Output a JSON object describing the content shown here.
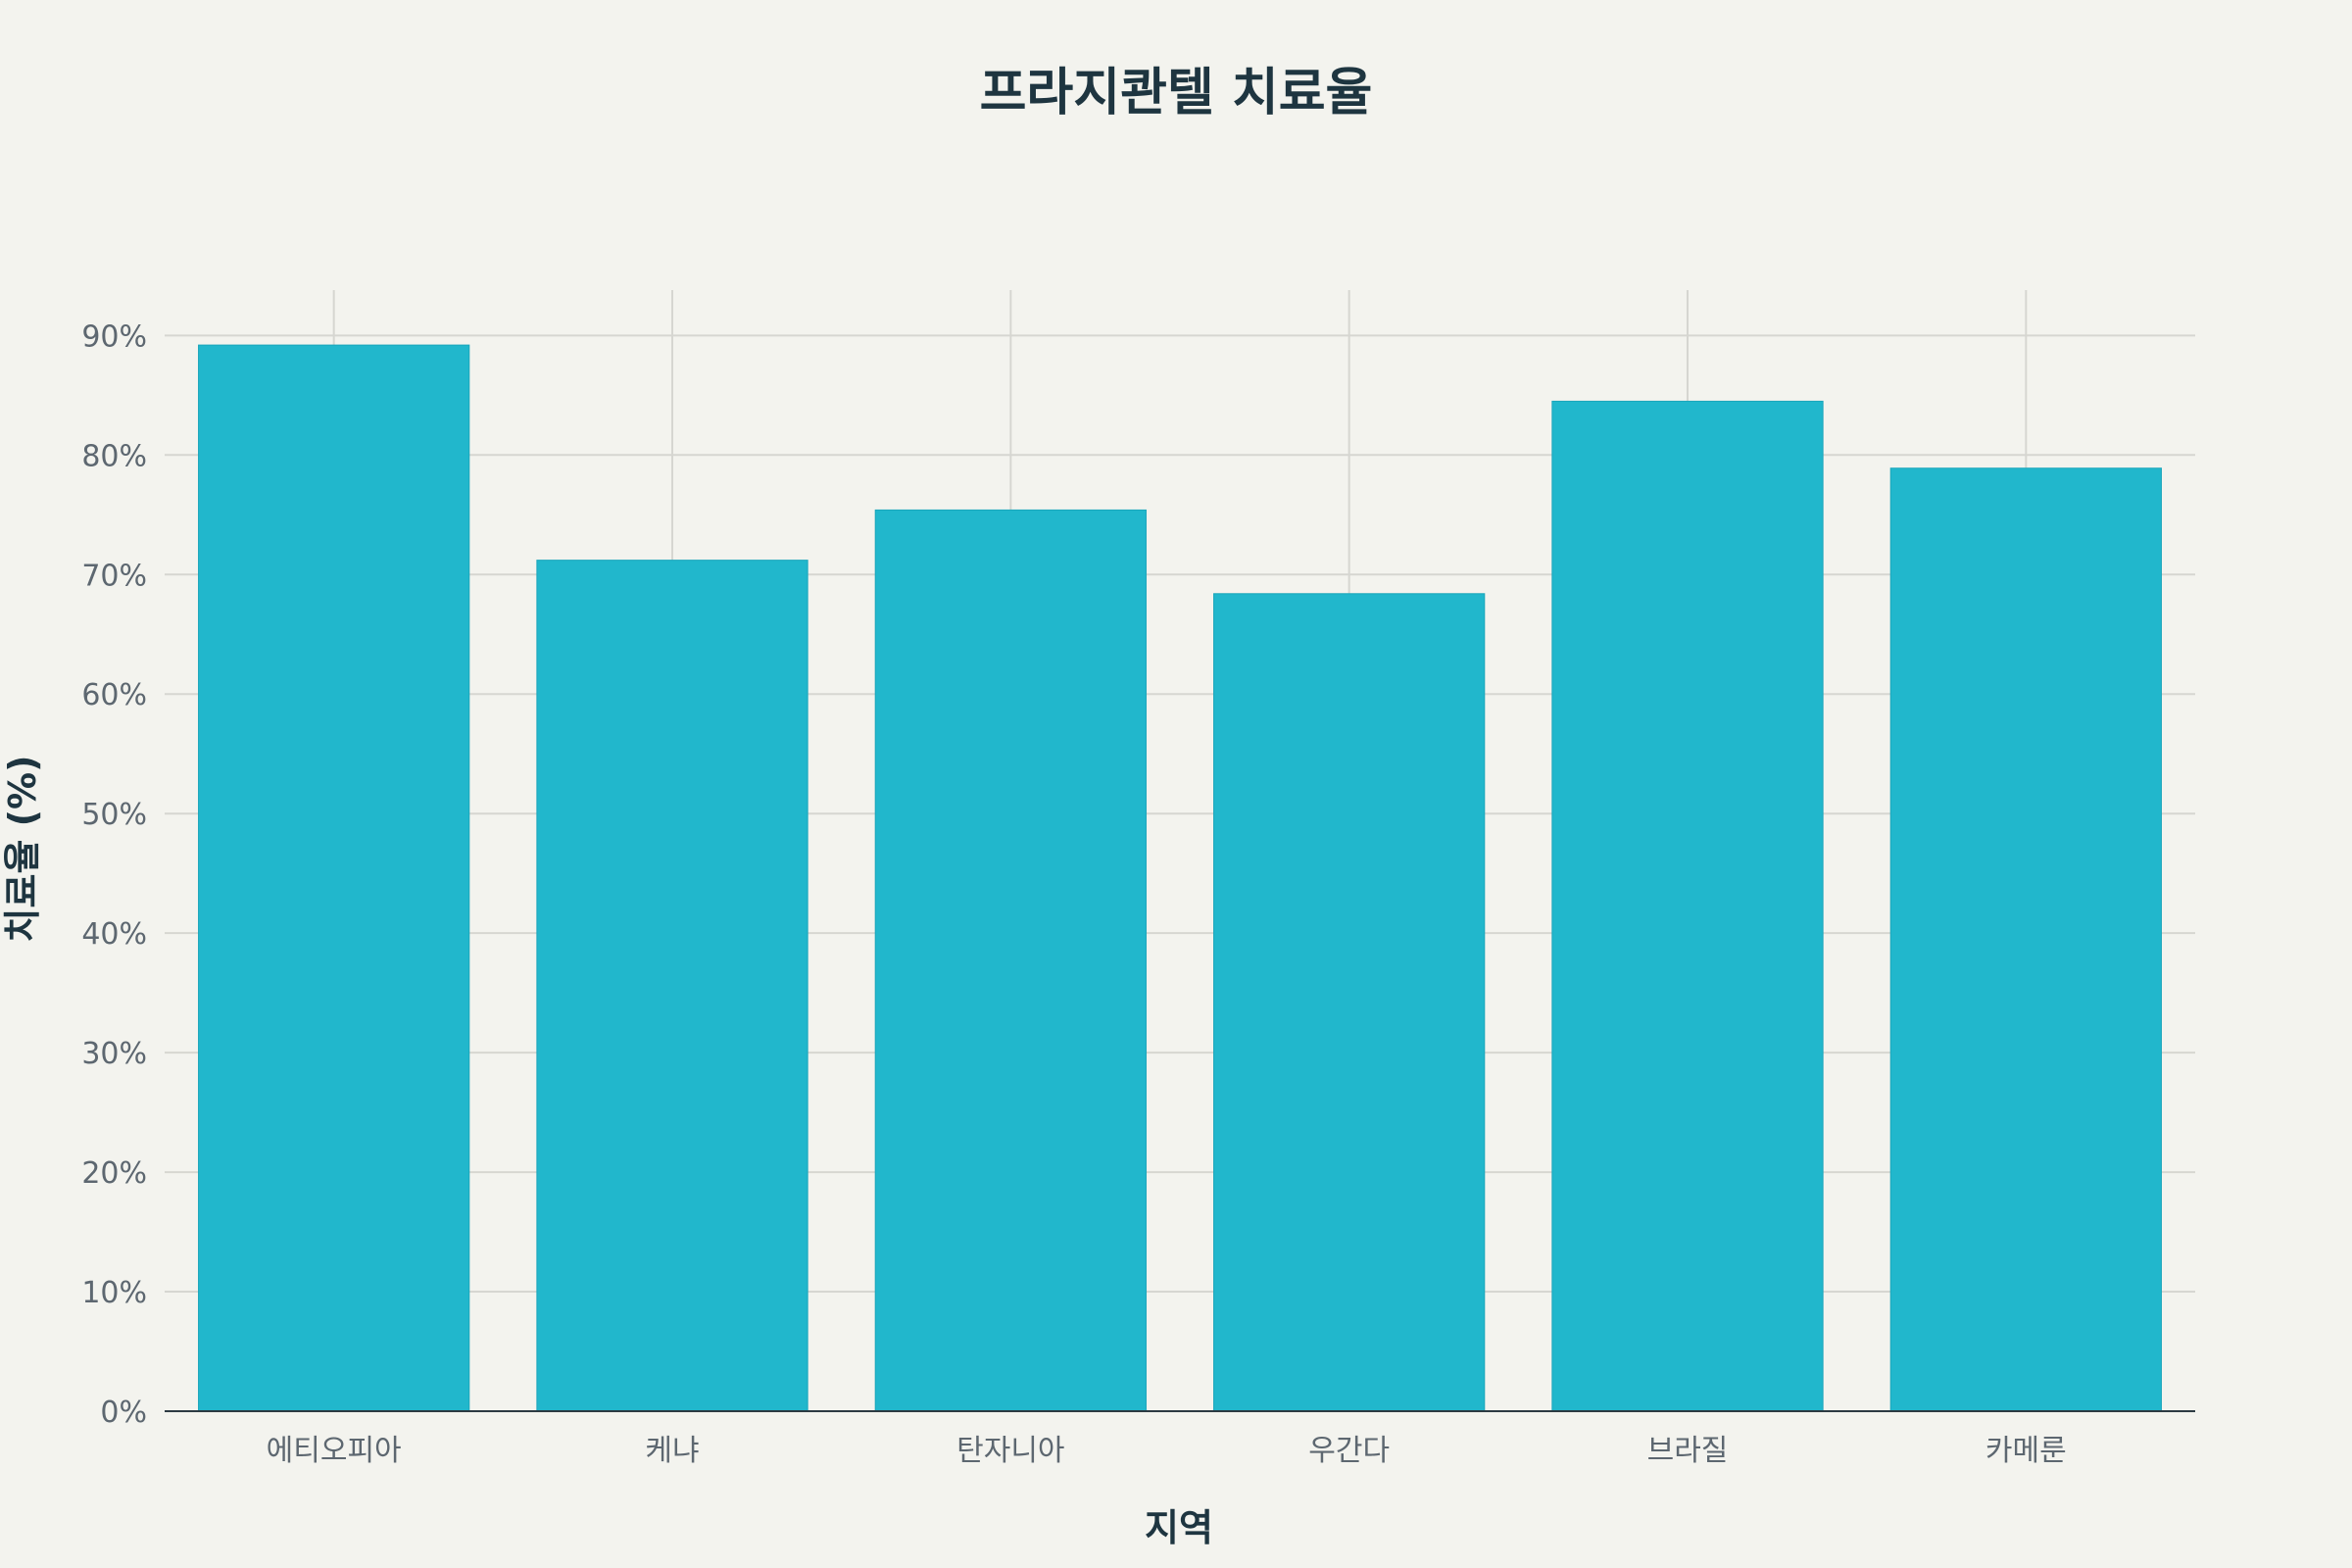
{
  "chart_data": {
    "type": "bar",
    "title": "프라지콴텔 치료율",
    "xlabel": "지역",
    "ylabel": "치료율 (%)",
    "categories": [
      "에티오피아",
      "케냐",
      "탄자니아",
      "우간다",
      "브라질",
      "카메룬"
    ],
    "values": [
      89.2,
      71.2,
      75.4,
      68.4,
      84.5,
      78.9
    ],
    "ylim": [
      0,
      93.8
    ],
    "yticks": [
      0,
      10,
      20,
      30,
      40,
      50,
      60,
      70,
      80,
      90
    ],
    "ytick_suffix": "%",
    "grid": true,
    "bar_color": "#21b7cc"
  }
}
